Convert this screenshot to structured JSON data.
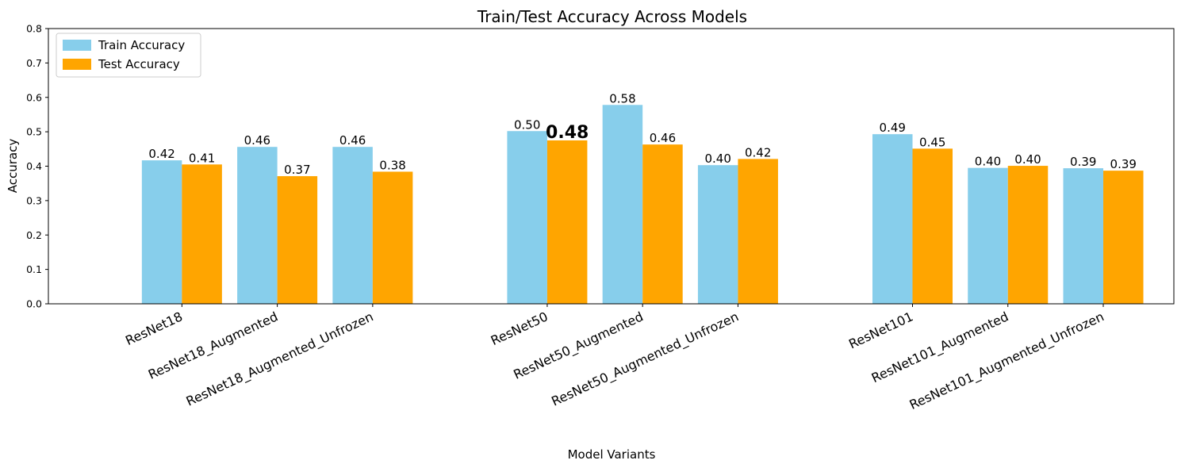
{
  "chart_data": {
    "type": "bar",
    "title": "Train/Test Accuracy Across Models",
    "xlabel": "Model Variants",
    "ylabel": "Accuracy",
    "ylim": [
      0,
      0.8
    ],
    "yticks": [
      "0.0",
      "0.1",
      "0.2",
      "0.3",
      "0.4",
      "0.5",
      "0.6",
      "0.7",
      "0.8"
    ],
    "categories": [
      "ResNet18",
      "ResNet18_Augmented",
      "ResNet18_Augmented_Unfrozen",
      "ResNet50",
      "ResNet50_Augmented",
      "ResNet50_Augmented_Unfrozen",
      "ResNet101",
      "ResNet101_Augmented",
      "ResNet101_Augmented_Unfrozen"
    ],
    "x_positions": [
      0,
      1,
      2,
      3.83,
      4.83,
      5.83,
      7.66,
      8.66,
      9.66
    ],
    "xlim": [
      -1.4,
      10.4
    ],
    "series": [
      {
        "name": "Train Accuracy",
        "color": "#87ceeb",
        "values": [
          0.417,
          0.456,
          0.456,
          0.502,
          0.578,
          0.403,
          0.493,
          0.395,
          0.394
        ],
        "labels": [
          "0.42",
          "0.46",
          "0.46",
          "0.50",
          "0.58",
          "0.40",
          "0.49",
          "0.40",
          "0.39"
        ]
      },
      {
        "name": "Test Accuracy",
        "color": "#ffa500",
        "values": [
          0.405,
          0.371,
          0.384,
          0.475,
          0.463,
          0.421,
          0.451,
          0.401,
          0.387
        ],
        "labels": [
          "0.41",
          "0.37",
          "0.38",
          "0.48",
          "0.46",
          "0.42",
          "0.45",
          "0.40",
          "0.39"
        ]
      }
    ],
    "highlight": {
      "series": 1,
      "index": 3,
      "color": "#006400"
    },
    "legend": "upper-left",
    "grid": false
  }
}
